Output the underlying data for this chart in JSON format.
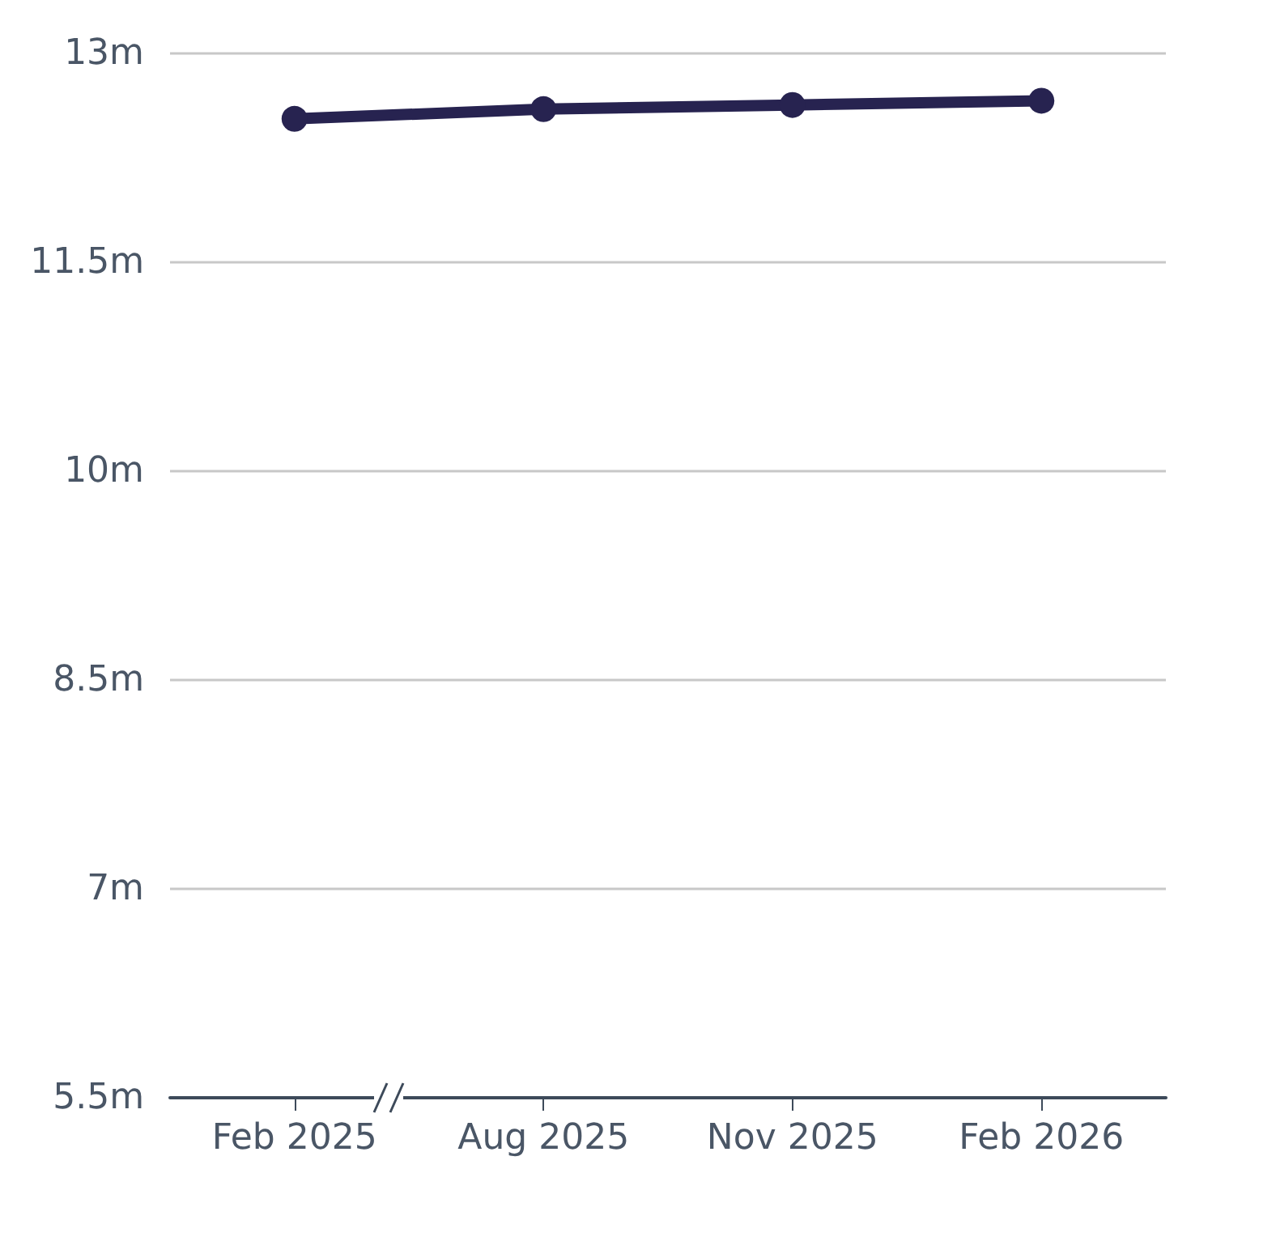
{
  "chart_data": {
    "type": "line",
    "categories": [
      "Feb 2025",
      "Aug 2025",
      "Nov 2025",
      "Feb 2026"
    ],
    "series": [
      {
        "color": "#272350",
        "values": [
          12.53,
          12.6,
          12.63,
          12.66
        ]
      }
    ],
    "ylim": [
      5.5,
      13
    ],
    "yticks": [
      {
        "value": 5.5,
        "label": "5.5m"
      },
      {
        "value": 7,
        "label": "7m"
      },
      {
        "value": 8.5,
        "label": "8.5m"
      },
      {
        "value": 10,
        "label": "10m"
      },
      {
        "value": 11.5,
        "label": "11.5m"
      },
      {
        "value": 13,
        "label": "13m"
      }
    ],
    "grid": "y",
    "marker": "circle",
    "line_style": "solid"
  }
}
